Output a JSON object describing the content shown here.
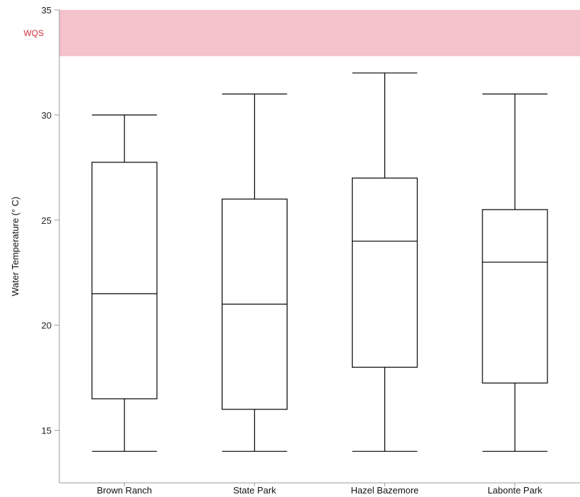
{
  "chart_data": {
    "type": "box",
    "title": "",
    "xlabel": "",
    "ylabel": "Water Temperature (° C)",
    "ylim": [
      12.5,
      35
    ],
    "yticks": [
      15,
      20,
      25,
      30,
      35
    ],
    "grid": false,
    "categories": [
      "Brown Ranch",
      "State Park",
      "Hazel Bazemore",
      "Labonte Park"
    ],
    "boxes": [
      {
        "min": 14,
        "q1": 16.5,
        "median": 21.5,
        "q3": 27.75,
        "max": 30
      },
      {
        "min": 14,
        "q1": 16,
        "median": 21,
        "q3": 26,
        "max": 31
      },
      {
        "min": 14,
        "q1": 18,
        "median": 24,
        "q3": 27,
        "max": 32
      },
      {
        "min": 14,
        "q1": 17.25,
        "median": 23,
        "q3": 25.5,
        "max": 31
      }
    ],
    "band": {
      "label": "WQS",
      "from": 32.8,
      "to": 35,
      "color": "#f4c2cb",
      "label_color": "#d0303a"
    },
    "colors": {
      "box_stroke": "#000000",
      "axis": "#999999"
    }
  }
}
